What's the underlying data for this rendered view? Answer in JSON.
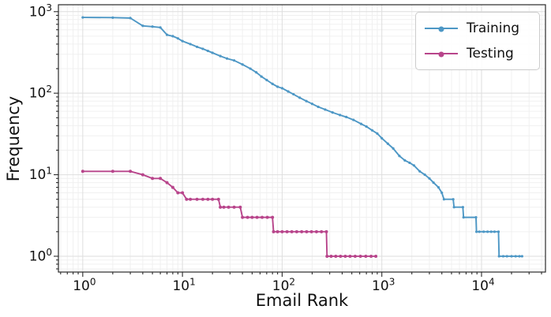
{
  "chart_data": {
    "type": "line",
    "title": "",
    "xlabel": "Email Rank",
    "ylabel": "Frequency",
    "xscale": "log",
    "yscale": "log",
    "xlim": [
      0.57,
      43800
    ],
    "ylim": [
      0.64,
      1216
    ],
    "grid": true,
    "legend_position": "upper right",
    "frame_color": "#2a2a2a",
    "grid_major_color": "#dedede",
    "grid_minor_color": "#f0f0f0",
    "x_ticks": [
      {
        "value": 1,
        "label": "10^0"
      },
      {
        "value": 10,
        "label": "10^1"
      },
      {
        "value": 100,
        "label": "10^2"
      },
      {
        "value": 1000,
        "label": "10^3"
      },
      {
        "value": 10000,
        "label": "10^4"
      }
    ],
    "y_ticks": [
      {
        "value": 1,
        "label": "10^0"
      },
      {
        "value": 10,
        "label": "10^1"
      },
      {
        "value": 100,
        "label": "10^2"
      },
      {
        "value": 1000,
        "label": "10^3"
      }
    ],
    "series": [
      {
        "name": "Training",
        "color": "#4D97C5",
        "points": [
          [
            1,
            850
          ],
          [
            2,
            845
          ],
          [
            3,
            835
          ],
          [
            4,
            670
          ],
          [
            5,
            655
          ],
          [
            6,
            640
          ],
          [
            7,
            520
          ],
          [
            8,
            500
          ],
          [
            9,
            470
          ],
          [
            10,
            435
          ],
          [
            12,
            400
          ],
          [
            14,
            370
          ],
          [
            16,
            350
          ],
          [
            18,
            330
          ],
          [
            20,
            313
          ],
          [
            24,
            285
          ],
          [
            28,
            266
          ],
          [
            33,
            252
          ],
          [
            40,
            225
          ],
          [
            48,
            200
          ],
          [
            55,
            180
          ],
          [
            62,
            160
          ],
          [
            70,
            145
          ],
          [
            80,
            130
          ],
          [
            90,
            120
          ],
          [
            100,
            115
          ],
          [
            115,
            105
          ],
          [
            130,
            97
          ],
          [
            150,
            88
          ],
          [
            175,
            80
          ],
          [
            200,
            74
          ],
          [
            230,
            68
          ],
          [
            270,
            63
          ],
          [
            320,
            58
          ],
          [
            380,
            54
          ],
          [
            440,
            51
          ],
          [
            520,
            47
          ],
          [
            620,
            42
          ],
          [
            700,
            39
          ],
          [
            800,
            35
          ],
          [
            900,
            32
          ],
          [
            1000,
            28
          ],
          [
            1150,
            24
          ],
          [
            1300,
            21
          ],
          [
            1500,
            17
          ],
          [
            1700,
            15
          ],
          [
            1900,
            14
          ],
          [
            2100,
            13
          ],
          [
            2400,
            11
          ],
          [
            2700,
            10
          ],
          [
            3000,
            9
          ],
          [
            3300,
            8
          ],
          [
            3700,
            7
          ],
          [
            4000,
            6
          ],
          [
            4200,
            5
          ],
          [
            5200,
            5
          ],
          [
            5300,
            4
          ],
          [
            6500,
            4
          ],
          [
            6600,
            3
          ],
          [
            8800,
            3
          ],
          [
            8900,
            2
          ],
          [
            9500,
            2
          ],
          [
            10500,
            2
          ],
          [
            11500,
            2
          ],
          [
            12500,
            2
          ],
          [
            13500,
            2
          ],
          [
            14800,
            2
          ],
          [
            15000,
            1
          ],
          [
            16500,
            1
          ],
          [
            18000,
            1
          ],
          [
            20000,
            1
          ],
          [
            22000,
            1
          ],
          [
            24000,
            1
          ],
          [
            25500,
            1
          ]
        ]
      },
      {
        "name": "Testing",
        "color": "#B8458B",
        "points": [
          [
            1,
            11
          ],
          [
            2,
            11
          ],
          [
            3,
            11
          ],
          [
            4,
            10
          ],
          [
            5,
            9
          ],
          [
            6,
            9
          ],
          [
            7,
            8
          ],
          [
            8,
            7
          ],
          [
            9,
            6
          ],
          [
            10,
            6
          ],
          [
            11,
            5
          ],
          [
            12,
            5
          ],
          [
            14,
            5
          ],
          [
            16,
            5
          ],
          [
            18,
            5
          ],
          [
            20,
            5
          ],
          [
            23,
            5
          ],
          [
            24,
            4
          ],
          [
            26,
            4
          ],
          [
            29,
            4
          ],
          [
            33,
            4
          ],
          [
            38,
            4
          ],
          [
            40,
            3
          ],
          [
            45,
            3
          ],
          [
            50,
            3
          ],
          [
            56,
            3
          ],
          [
            63,
            3
          ],
          [
            71,
            3
          ],
          [
            80,
            3
          ],
          [
            82,
            2
          ],
          [
            90,
            2
          ],
          [
            100,
            2
          ],
          [
            112,
            2
          ],
          [
            125,
            2
          ],
          [
            140,
            2
          ],
          [
            157,
            2
          ],
          [
            176,
            2
          ],
          [
            197,
            2
          ],
          [
            221,
            2
          ],
          [
            248,
            2
          ],
          [
            278,
            2
          ],
          [
            282,
            1
          ],
          [
            310,
            1
          ],
          [
            345,
            1
          ],
          [
            385,
            1
          ],
          [
            430,
            1
          ],
          [
            480,
            1
          ],
          [
            540,
            1
          ],
          [
            610,
            1
          ],
          [
            690,
            1
          ],
          [
            780,
            1
          ],
          [
            870,
            1
          ]
        ]
      }
    ]
  }
}
